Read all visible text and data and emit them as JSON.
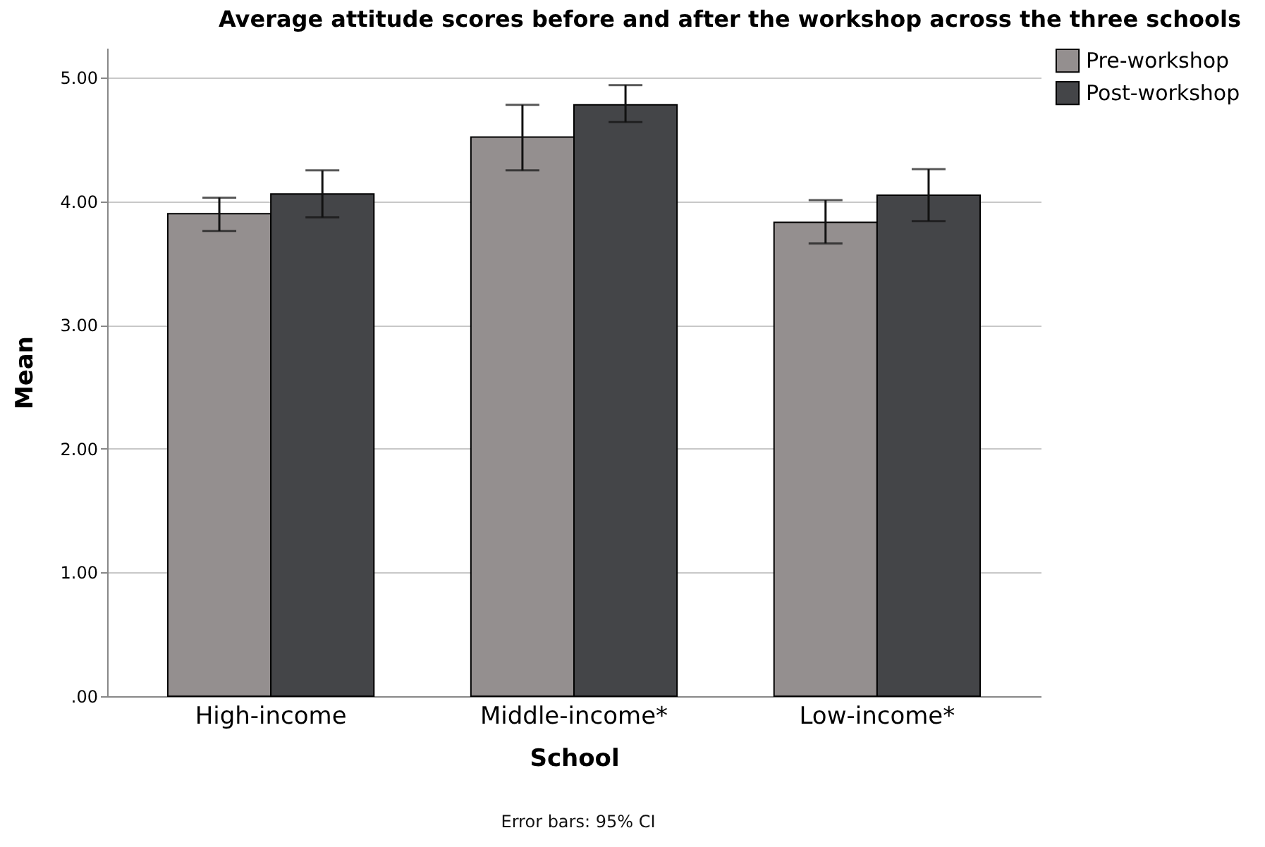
{
  "chart_data": {
    "type": "bar",
    "title": "Average attitude scores before and after the workshop across the three schools",
    "xlabel": "School",
    "ylabel": "Mean",
    "categories": [
      "High-income",
      "Middle-income*",
      "Low-income*"
    ],
    "series": [
      {
        "name": "Pre-workshop",
        "color": "#948f8f",
        "values": [
          3.9,
          4.52,
          3.83
        ],
        "errors": [
          [
            3.76,
            4.03
          ],
          [
            4.25,
            4.78
          ],
          [
            3.66,
            4.01
          ]
        ]
      },
      {
        "name": "Post-workshop",
        "color": "#444548",
        "values": [
          4.06,
          4.78,
          4.05
        ],
        "errors": [
          [
            3.87,
            4.25
          ],
          [
            4.64,
            4.94
          ],
          [
            3.84,
            4.26
          ]
        ]
      }
    ],
    "ylim": [
      0,
      5.24
    ],
    "yticks": [
      {
        "value": 0,
        "label": ".00"
      },
      {
        "value": 1,
        "label": "1.00"
      },
      {
        "value": 2,
        "label": "2.00"
      },
      {
        "value": 3,
        "label": "3.00"
      },
      {
        "value": 4,
        "label": "4.00"
      },
      {
        "value": 5,
        "label": "5.00"
      }
    ],
    "grid": "y",
    "legend": "top right",
    "annotations": [
      "Error bars: 95% CI"
    ]
  }
}
